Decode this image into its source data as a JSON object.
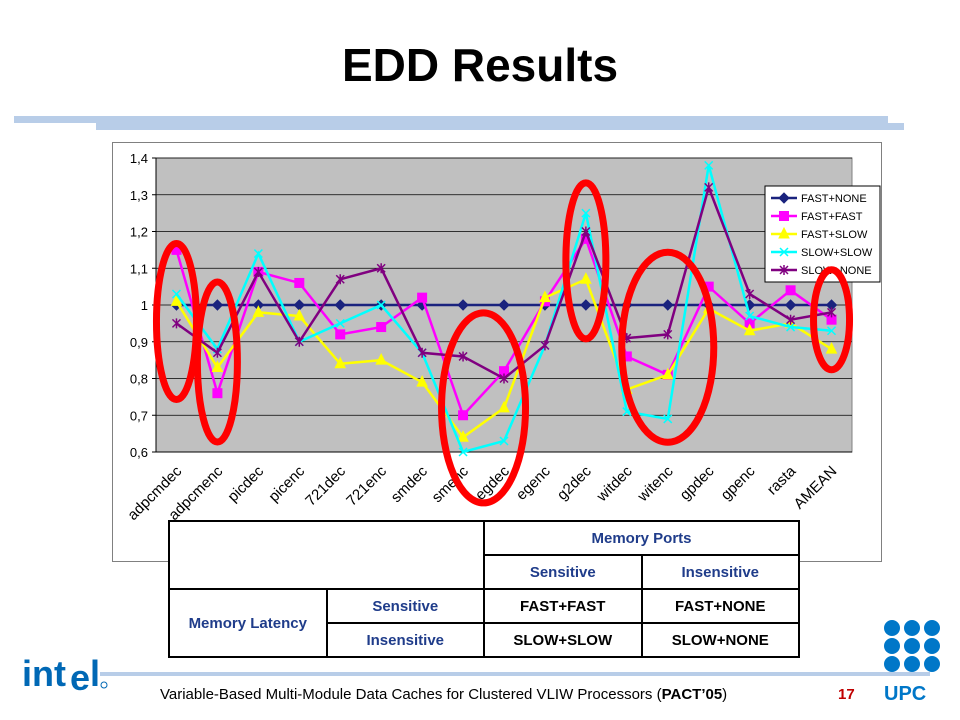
{
  "slide": {
    "title": "EDD Results",
    "footer": {
      "text": "Variable-Based Multi-Module Data Caches for Clustered VLIW Processors (",
      "bold": "PACT’05",
      "close": ")"
    },
    "page_number": "17",
    "logos": {
      "left": "intel",
      "right": "UPC"
    }
  },
  "colors": {
    "FAST+NONE": "#1a237e",
    "FAST+FAST": "#ff00ff",
    "FAST+SLOW": "#ffff00",
    "SLOW+SLOW": "#00ffff",
    "SLOW+NONE": "#800080",
    "plot_bg": "#c0c0c0",
    "highlight_ellipse": "#ff0000"
  },
  "chart_data": {
    "type": "line",
    "title": "",
    "xlabel": "",
    "ylabel": "",
    "ylim": [
      0.6,
      1.4
    ],
    "yticks": [
      "0,6",
      "0,7",
      "0,8",
      "0,9",
      "1",
      "1,1",
      "1,2",
      "1,3",
      "1,4"
    ],
    "grid": "horizontal",
    "legend_position": "top-right",
    "categories": [
      "adpcmdec",
      "adpcmenc",
      "epicdec",
      "epicenc",
      "g721dec",
      "g721enc",
      "gsmdec",
      "gsmenc",
      "jpegdec",
      "jpegenc",
      "mpeg2dec",
      "pegwitdec",
      "pegwitenc",
      "pgpdec",
      "pgpenc",
      "rasta",
      "AMEAN"
    ],
    "visible_tick_labels": [
      "adpcmdec",
      "adpcmenc",
      "picdec",
      "picenc",
      "721dec",
      "721enc",
      "smdec",
      "smenc",
      "egdec",
      "egenc",
      "g2dec",
      "witdec",
      "witenc",
      "gpdec",
      "gpenc",
      "rasta",
      "AMEAN"
    ],
    "series": [
      {
        "name": "FAST+NONE",
        "marker": "diamond",
        "values": [
          1,
          1,
          1,
          1,
          1,
          1,
          1,
          1,
          1,
          1,
          1,
          1,
          1,
          1,
          1,
          1,
          1
        ]
      },
      {
        "name": "FAST+FAST",
        "marker": "square",
        "values": [
          1.15,
          0.76,
          1.09,
          1.06,
          0.92,
          0.94,
          1.02,
          0.7,
          0.82,
          1.01,
          1.18,
          0.86,
          0.81,
          1.05,
          0.95,
          1.04,
          0.96
        ]
      },
      {
        "name": "FAST+SLOW",
        "marker": "triangle",
        "values": [
          1.01,
          0.83,
          0.98,
          0.97,
          0.84,
          0.85,
          0.79,
          0.64,
          0.72,
          1.02,
          1.07,
          0.77,
          0.81,
          0.99,
          0.93,
          0.95,
          0.88
        ]
      },
      {
        "name": "SLOW+SLOW",
        "marker": "x",
        "values": [
          1.03,
          0.88,
          1.14,
          0.9,
          0.95,
          1.0,
          0.87,
          0.6,
          0.63,
          0.89,
          1.25,
          0.71,
          0.69,
          1.38,
          0.97,
          0.94,
          0.93
        ]
      },
      {
        "name": "SLOW+NONE",
        "marker": "star",
        "values": [
          0.95,
          0.87,
          1.09,
          0.9,
          1.07,
          1.1,
          0.87,
          0.86,
          0.8,
          0.89,
          1.2,
          0.91,
          0.92,
          1.32,
          1.03,
          0.96,
          0.98
        ]
      }
    ],
    "annotations": "red ellipses around adpcmdec, adpcmenc, gsmenc-jpegdec, mpeg2dec, pegwitdec-pgpdec, AMEAN"
  },
  "table": {
    "col_group": "Memory Ports",
    "col_headers": [
      "Sensitive",
      "Insensitive"
    ],
    "row_group": "Memory Latency",
    "rows": [
      {
        "label": "Sensitive",
        "cells": [
          "FAST+FAST",
          "FAST+NONE"
        ]
      },
      {
        "label": "Insensitive",
        "cells": [
          "SLOW+SLOW",
          "SLOW+NONE"
        ]
      }
    ]
  }
}
